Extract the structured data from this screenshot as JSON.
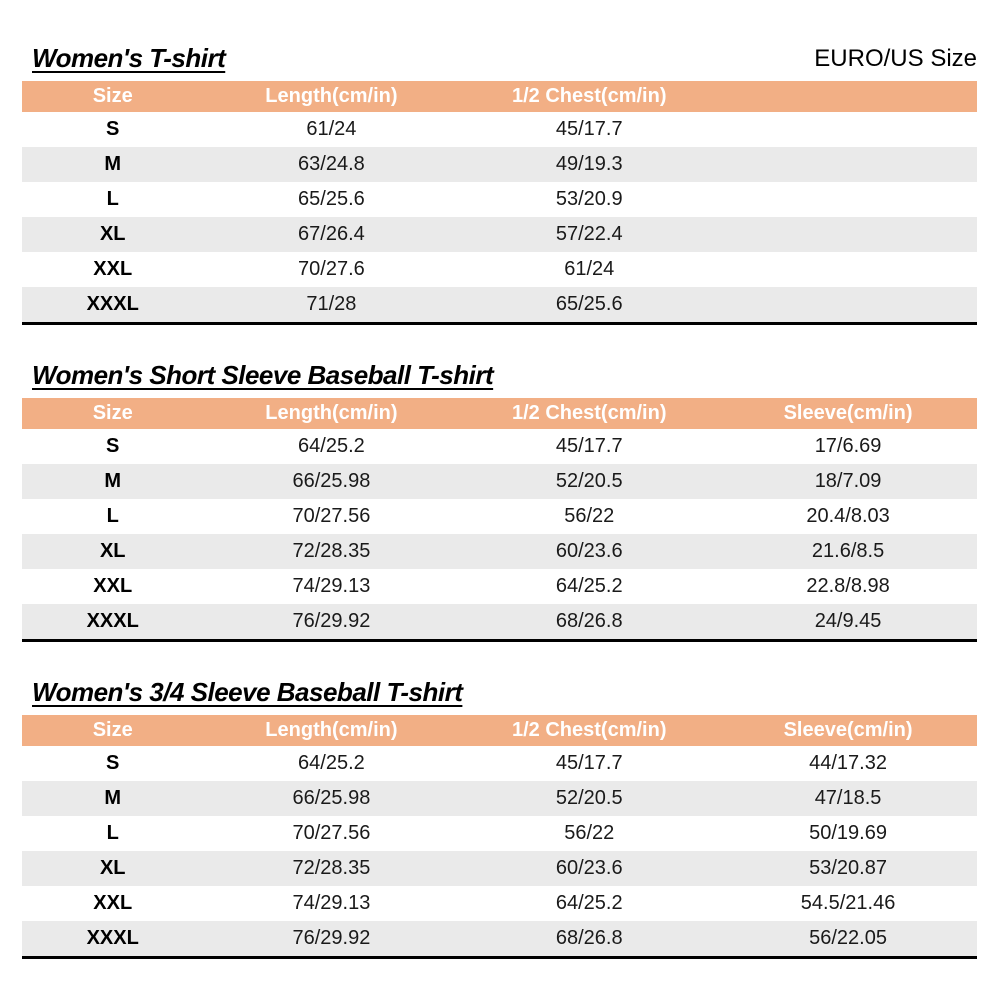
{
  "page": {
    "size_standard_label": "EURO/US Size"
  },
  "colors": {
    "header_bg": "#F2AF85",
    "header_text": "#FFFFFF",
    "row_bg": "#FFFFFF",
    "row_alt_bg": "#EAEAEA",
    "table_bottom_border": "#000000",
    "title_text": "#000000"
  },
  "tables": [
    {
      "title": "Women's T-shirt",
      "columns": [
        "Size",
        "Length(cm/in)",
        "1/2 Chest(cm/in)",
        ""
      ],
      "rows": [
        [
          "S",
          "61/24",
          "45/17.7",
          ""
        ],
        [
          "M",
          "63/24.8",
          "49/19.3",
          ""
        ],
        [
          "L",
          "65/25.6",
          "53/20.9",
          ""
        ],
        [
          "XL",
          "67/26.4",
          "57/22.4",
          ""
        ],
        [
          "XXL",
          "70/27.6",
          "61/24",
          ""
        ],
        [
          "XXXL",
          "71/28",
          "65/25.6",
          ""
        ]
      ]
    },
    {
      "title": "Women's Short Sleeve Baseball T-shirt",
      "columns": [
        "Size",
        "Length(cm/in)",
        "1/2 Chest(cm/in)",
        "Sleeve(cm/in)"
      ],
      "rows": [
        [
          "S",
          "64/25.2",
          "45/17.7",
          "17/6.69"
        ],
        [
          "M",
          "66/25.98",
          "52/20.5",
          "18/7.09"
        ],
        [
          "L",
          "70/27.56",
          "56/22",
          "20.4/8.03"
        ],
        [
          "XL",
          "72/28.35",
          "60/23.6",
          "21.6/8.5"
        ],
        [
          "XXL",
          "74/29.13",
          "64/25.2",
          "22.8/8.98"
        ],
        [
          "XXXL",
          "76/29.92",
          "68/26.8",
          "24/9.45"
        ]
      ]
    },
    {
      "title": "Women's 3/4 Sleeve Baseball T-shirt",
      "columns": [
        "Size",
        "Length(cm/in)",
        "1/2 Chest(cm/in)",
        "Sleeve(cm/in)"
      ],
      "rows": [
        [
          "S",
          "64/25.2",
          "45/17.7",
          "44/17.32"
        ],
        [
          "M",
          "66/25.98",
          "52/20.5",
          "47/18.5"
        ],
        [
          "L",
          "70/27.56",
          "56/22",
          "50/19.69"
        ],
        [
          "XL",
          "72/28.35",
          "60/23.6",
          "53/20.87"
        ],
        [
          "XXL",
          "74/29.13",
          "64/25.2",
          "54.5/21.46"
        ],
        [
          "XXXL",
          "76/29.92",
          "68/26.8",
          "56/22.05"
        ]
      ]
    }
  ]
}
